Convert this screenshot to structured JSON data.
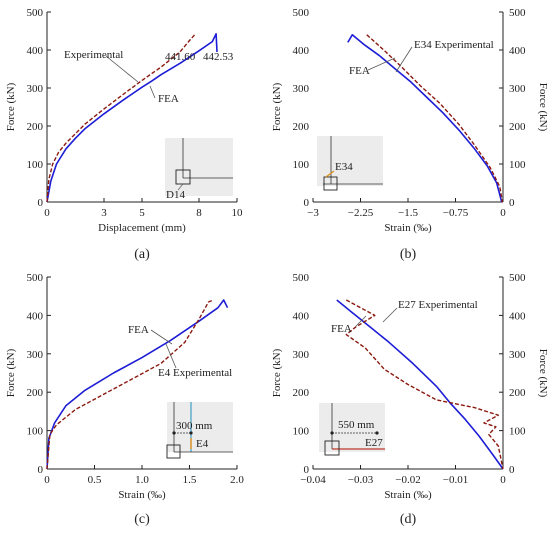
{
  "colors": {
    "fea": "#1d1dd6",
    "experimental": "#8b1a10",
    "axis": "#222222",
    "inset_bg": "#ececec"
  },
  "chart_data": [
    {
      "type": "line",
      "panel_label": "(a)",
      "xlabel": "Displacement (mm)",
      "ylabel": "Force (kN)",
      "xlim": [
        0,
        10
      ],
      "ylim": [
        0,
        500
      ],
      "xticks": [
        0,
        3,
        5,
        8,
        10
      ],
      "xtick_labels": [
        "0",
        "3",
        "5",
        "8",
        "10"
      ],
      "yticks": [
        0,
        100,
        200,
        300,
        400,
        500
      ],
      "ytick_labels": [
        "0",
        "100",
        "200",
        "300",
        "400",
        "500"
      ],
      "y_axis_side": "left",
      "series": [
        {
          "name": "FEA",
          "style": "solid",
          "x": [
            0,
            0.2,
            0.5,
            1.0,
            1.5,
            2.0,
            3.0,
            4.0,
            5.0,
            5.5,
            6.0,
            7.0,
            8.0,
            8.7,
            8.9,
            8.95
          ],
          "y": [
            0,
            55,
            100,
            140,
            168,
            193,
            232,
            268,
            302,
            318,
            335,
            365,
            398,
            422,
            442.53,
            395
          ]
        },
        {
          "name": "Experimental",
          "style": "dashed",
          "x": [
            0,
            0.1,
            0.3,
            0.6,
            1.0,
            1.5,
            2.0,
            3.0,
            4.0,
            5.0,
            6.0,
            7.0,
            7.5,
            7.8
          ],
          "y": [
            0,
            60,
            100,
            130,
            155,
            180,
            205,
            245,
            283,
            320,
            355,
            395,
            425,
            441.6
          ]
        }
      ],
      "annotations": [
        {
          "text": "441.60"
        },
        {
          "text": "442.53"
        },
        {
          "text": "Experimental"
        },
        {
          "text": "FEA"
        }
      ],
      "inset_label": "D14"
    },
    {
      "type": "line",
      "panel_label": "(b)",
      "xlabel": "Strain (‰)",
      "ylabel": "Force (kN)",
      "xlim": [
        -3,
        0
      ],
      "ylim": [
        0,
        500
      ],
      "xticks": [
        -3,
        -2.25,
        -1.5,
        -0.75,
        0
      ],
      "xtick_labels": [
        "−3",
        "−2.25",
        "−1.5",
        "−0.75",
        "0"
      ],
      "yticks": [
        0,
        100,
        200,
        300,
        400,
        500
      ],
      "ytick_labels": [
        "0",
        "100",
        "200",
        "300",
        "400",
        "500"
      ],
      "y_axis_side": "both",
      "series": [
        {
          "name": "FEA",
          "style": "solid",
          "x": [
            -2.45,
            -2.38,
            -2.2,
            -1.95,
            -1.7,
            -1.45,
            -1.2,
            -0.95,
            -0.7,
            -0.45,
            -0.25,
            -0.1,
            -0.02
          ],
          "y": [
            420,
            440,
            415,
            385,
            350,
            315,
            275,
            235,
            190,
            140,
            95,
            50,
            0
          ]
        },
        {
          "name": "E34 Experimental",
          "style": "dashed",
          "x": [
            -2.15,
            -2.05,
            -1.85,
            -1.6,
            -1.3,
            -1.0,
            -0.7,
            -0.45,
            -0.2,
            -0.05,
            -0.01
          ],
          "y": [
            440,
            425,
            395,
            355,
            305,
            260,
            205,
            150,
            90,
            40,
            0
          ]
        }
      ],
      "annotations": [
        {
          "text": "FEA"
        },
        {
          "text": "E34 Experimental"
        }
      ],
      "inset_label": "E34"
    },
    {
      "type": "line",
      "panel_label": "(c)",
      "xlabel": "Strain (‰)",
      "ylabel": "Force (kN)",
      "xlim": [
        0,
        2
      ],
      "ylim": [
        0,
        500
      ],
      "xticks": [
        0,
        0.5,
        1,
        1.5,
        2
      ],
      "xtick_labels": [
        "0",
        "0.5",
        "1.0",
        "1.5",
        "2.0"
      ],
      "yticks": [
        0,
        100,
        200,
        300,
        400,
        500
      ],
      "ytick_labels": [
        "0",
        "100",
        "200",
        "300",
        "400",
        "500"
      ],
      "y_axis_side": "left",
      "series": [
        {
          "name": "FEA",
          "style": "solid",
          "x": [
            0,
            0.02,
            0.08,
            0.2,
            0.4,
            0.7,
            1.0,
            1.3,
            1.6,
            1.8,
            1.86,
            1.9
          ],
          "y": [
            0,
            80,
            120,
            165,
            205,
            250,
            290,
            335,
            385,
            420,
            440,
            420
          ]
        },
        {
          "name": "E4 Experimental",
          "style": "dashed",
          "x": [
            0,
            0.03,
            0.1,
            0.3,
            0.6,
            0.9,
            1.2,
            1.45,
            1.6,
            1.7,
            1.75
          ],
          "y": [
            0,
            90,
            115,
            155,
            195,
            235,
            275,
            330,
            390,
            435,
            440
          ]
        }
      ],
      "annotations": [
        {
          "text": "FEA"
        },
        {
          "text": "E4 Experimental"
        },
        {
          "text": "300 mm"
        }
      ],
      "inset_label": "E4"
    },
    {
      "type": "line",
      "panel_label": "(d)",
      "xlabel": "Strain (‰)",
      "ylabel": "Force (kN)",
      "xlim": [
        -0.04,
        0
      ],
      "ylim": [
        0,
        500
      ],
      "xticks": [
        -0.04,
        -0.03,
        -0.02,
        -0.01,
        0
      ],
      "xtick_labels": [
        "−0.04",
        "−0.03",
        "−0.02",
        "−0.01",
        "0"
      ],
      "yticks": [
        0,
        100,
        200,
        300,
        400,
        500
      ],
      "ytick_labels": [
        "0",
        "100",
        "200",
        "300",
        "400",
        "500"
      ],
      "y_axis_side": "both",
      "series": [
        {
          "name": "FEA",
          "style": "solid",
          "x": [
            -0.035,
            -0.032,
            -0.028,
            -0.024,
            -0.019,
            -0.014,
            -0.011,
            -0.008,
            -0.005,
            -0.002,
            0
          ],
          "y": [
            440,
            410,
            370,
            330,
            275,
            215,
            170,
            130,
            85,
            35,
            0
          ]
        },
        {
          "name": "E27 Experimental",
          "style": "dashed",
          "x": [
            -0.033,
            -0.027,
            -0.031,
            -0.033,
            -0.029,
            -0.025,
            -0.02,
            -0.014,
            -0.006,
            -0.001,
            -0.004,
            -0.0015,
            -0.003,
            -0.001,
            0
          ],
          "y": [
            440,
            400,
            370,
            350,
            315,
            260,
            220,
            180,
            160,
            140,
            120,
            110,
            90,
            60,
            0
          ]
        }
      ],
      "annotations": [
        {
          "text": "FEA"
        },
        {
          "text": "E27 Experimental"
        },
        {
          "text": "550 mm"
        }
      ],
      "inset_label": "E27"
    }
  ]
}
